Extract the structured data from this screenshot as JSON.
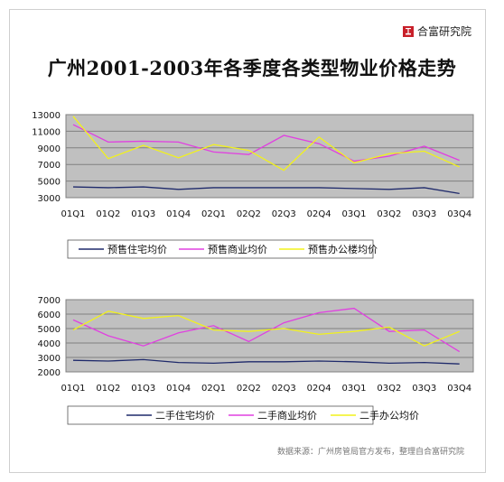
{
  "brand": {
    "name": "合富研究院"
  },
  "title": "广州2001-2003年各季度各类型物业价格走势",
  "source": "数据来源：广州房管局官方发布，整理自合富研究院",
  "colors": {
    "plot_bg": "#c0c0c0",
    "grid": "#808080",
    "series": [
      "#1f2a6b",
      "#e040e0",
      "#f2f21a"
    ]
  },
  "chart_data": [
    {
      "type": "line",
      "categories": [
        "01Q1",
        "01Q2",
        "01Q3",
        "01Q4",
        "02Q1",
        "02Q2",
        "02Q3",
        "02Q4",
        "03Q1",
        "03Q2",
        "03Q3",
        "03Q4"
      ],
      "ylim": [
        3000,
        13000
      ],
      "yticks": [
        3000,
        5000,
        7000,
        9000,
        11000,
        13000
      ],
      "grid": true,
      "legend": "bottom",
      "series": [
        {
          "name": "预售住宅均价",
          "color": "#1f2a6b",
          "values": [
            4300,
            4200,
            4300,
            4000,
            4200,
            4200,
            4200,
            4200,
            4100,
            4000,
            4200,
            3500
          ]
        },
        {
          "name": "预售商业均价",
          "color": "#e040e0",
          "values": [
            11800,
            9700,
            9800,
            9700,
            8500,
            8200,
            10500,
            9500,
            7400,
            8000,
            9200,
            7500
          ]
        },
        {
          "name": "预售办公楼均价",
          "color": "#f2f21a",
          "values": [
            12800,
            7700,
            9300,
            7800,
            9400,
            8700,
            6300,
            10300,
            7200,
            8300,
            8600,
            6700
          ]
        }
      ]
    },
    {
      "type": "line",
      "categories": [
        "01Q1",
        "01Q2",
        "01Q3",
        "01Q4",
        "02Q1",
        "02Q2",
        "02Q3",
        "02Q4",
        "03Q1",
        "03Q2",
        "03Q3",
        "03Q4"
      ],
      "ylim": [
        2000,
        7000
      ],
      "yticks": [
        2000,
        3000,
        4000,
        5000,
        6000,
        7000
      ],
      "grid": true,
      "legend": "bottom",
      "series": [
        {
          "name": "二手住宅均价",
          "color": "#1f2a6b",
          "values": [
            2800,
            2750,
            2850,
            2650,
            2600,
            2700,
            2700,
            2750,
            2700,
            2600,
            2650,
            2550
          ]
        },
        {
          "name": "二手商业均价",
          "color": "#e040e0",
          "values": [
            5600,
            4500,
            3800,
            4700,
            5200,
            4100,
            5400,
            6100,
            6400,
            4800,
            4900,
            3400
          ]
        },
        {
          "name": "二手办公均价",
          "color": "#f2f21a",
          "values": [
            4900,
            6200,
            5700,
            5900,
            4900,
            4800,
            5000,
            4600,
            4800,
            5100,
            3800,
            4800
          ]
        }
      ]
    }
  ]
}
